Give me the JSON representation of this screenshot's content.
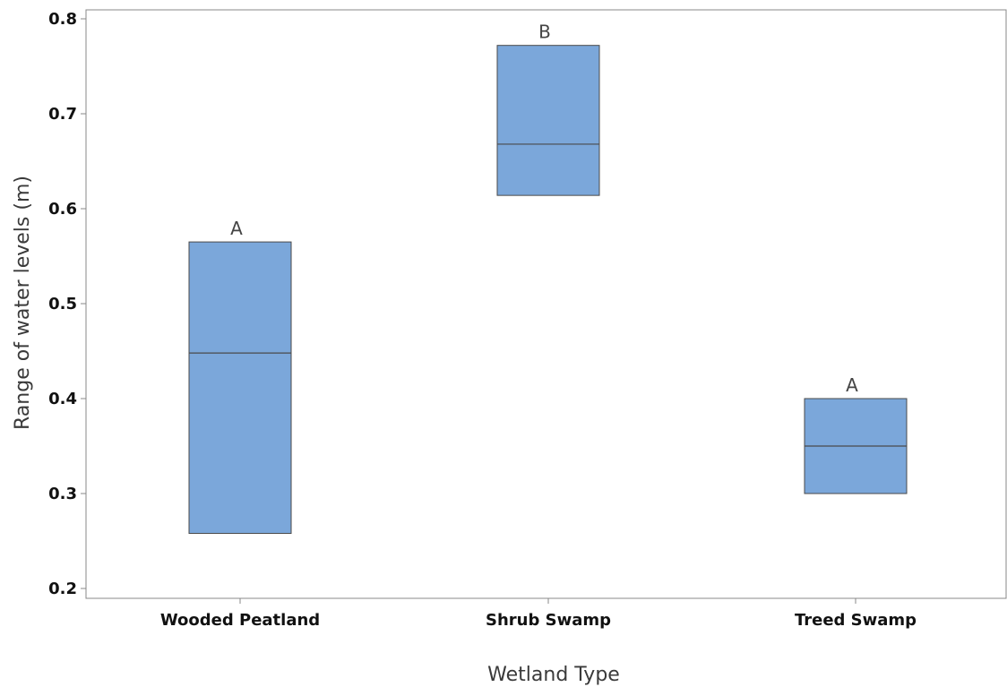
{
  "chart_data": {
    "type": "box",
    "categories": [
      "Wooded Peatland",
      "Shrub Swamp",
      "Treed Swamp"
    ],
    "boxes": [
      {
        "category": "Wooded Peatland",
        "q1": 0.258,
        "median": 0.448,
        "q3": 0.565,
        "group_letter": "A"
      },
      {
        "category": "Shrub Swamp",
        "q1": 0.614,
        "median": 0.668,
        "q3": 0.772,
        "group_letter": "B"
      },
      {
        "category": "Treed Swamp",
        "q1": 0.3,
        "median": 0.35,
        "q3": 0.4,
        "group_letter": "A"
      }
    ],
    "xlabel": "Wetland Type",
    "ylabel": "Range of water levels (m)",
    "ylim": [
      0.2,
      0.8
    ],
    "yticks": [
      0.2,
      0.3,
      0.4,
      0.5,
      0.6,
      0.7,
      0.8
    ],
    "ytick_labels": [
      "0.2",
      "0.3",
      "0.4",
      "0.5",
      "0.6",
      "0.7",
      "0.8"
    ],
    "grid": false,
    "box_color": "#7ba7da",
    "box_edge_color": "#4a4a4a",
    "axis_color": "#888888"
  }
}
